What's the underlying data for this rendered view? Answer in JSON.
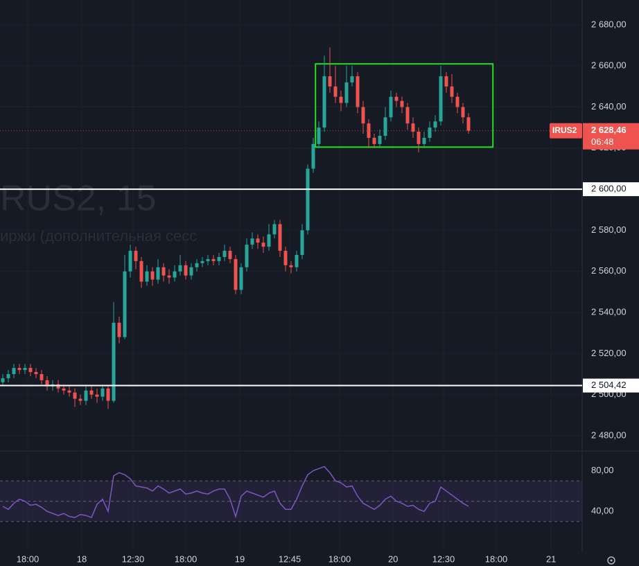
{
  "chart_data": {
    "type": "candlestick",
    "watermark": [
      "RUS2, 15",
      "иржи (дополнительная сесс"
    ],
    "open": [
      2506,
      2508,
      2510,
      2513,
      2512,
      2513,
      2511,
      2510,
      2507,
      2504,
      2505,
      2503,
      2502,
      2501,
      2498,
      2497,
      2502,
      2500,
      2499,
      2503,
      2497,
      2535,
      2528,
      2560,
      2570,
      2565,
      2555,
      2560,
      2556,
      2562,
      2558,
      2557,
      2560,
      2563,
      2558,
      2562,
      2564,
      2565,
      2566,
      2565,
      2567,
      2570,
      2566,
      2551,
      2562,
      2573,
      2576,
      2574,
      2572,
      2578,
      2583,
      2570,
      2563,
      2562,
      2568,
      2580,
      2610,
      2622,
      2630,
      2655,
      2650,
      2645,
      2642,
      2652,
      2655,
      2640,
      2632,
      2625,
      2622,
      2626,
      2635,
      2645,
      2643,
      2640,
      2632,
      2628,
      2622,
      2625,
      2630,
      2633,
      2655,
      2650,
      2645,
      2640,
      2635
    ],
    "high": [
      2510,
      2512,
      2515,
      2515,
      2515,
      2515,
      2513,
      2512,
      2509,
      2507,
      2507,
      2505,
      2504,
      2503,
      2500,
      2505,
      2504,
      2503,
      2505,
      2504,
      2545,
      2538,
      2568,
      2573,
      2572,
      2567,
      2563,
      2562,
      2566,
      2564,
      2561,
      2563,
      2568,
      2565,
      2564,
      2566,
      2567,
      2568,
      2568,
      2569,
      2573,
      2572,
      2568,
      2564,
      2576,
      2579,
      2578,
      2577,
      2583,
      2585,
      2585,
      2572,
      2565,
      2570,
      2583,
      2612,
      2625,
      2633,
      2665,
      2669,
      2660,
      2648,
      2660,
      2660,
      2657,
      2643,
      2634,
      2627,
      2629,
      2640,
      2648,
      2647,
      2645,
      2642,
      2635,
      2630,
      2628,
      2633,
      2636,
      2660,
      2657,
      2656,
      2647,
      2642,
      2637
    ],
    "low": [
      2504,
      2506,
      2508,
      2510,
      2510,
      2509,
      2508,
      2505,
      2502,
      2502,
      2501,
      2500,
      2499,
      2494,
      2495,
      2495,
      2498,
      2496,
      2497,
      2493,
      2496,
      2525,
      2527,
      2557,
      2561,
      2552,
      2553,
      2553,
      2554,
      2555,
      2554,
      2555,
      2558,
      2556,
      2556,
      2560,
      2562,
      2563,
      2563,
      2563,
      2565,
      2564,
      2549,
      2549,
      2560,
      2571,
      2571,
      2569,
      2570,
      2576,
      2567,
      2560,
      2559,
      2560,
      2566,
      2578,
      2608,
      2620,
      2628,
      2647,
      2642,
      2638,
      2640,
      2650,
      2637,
      2627,
      2620,
      2620,
      2620,
      2624,
      2633,
      2640,
      2637,
      2629,
      2625,
      2618,
      2620,
      2623,
      2628,
      2631,
      2647,
      2642,
      2637,
      2632,
      2627
    ],
    "close": [
      2508,
      2510,
      2513,
      2512,
      2513,
      2511,
      2510,
      2507,
      2504,
      2505,
      2503,
      2502,
      2501,
      2498,
      2497,
      2502,
      2500,
      2499,
      2503,
      2497,
      2535,
      2528,
      2560,
      2570,
      2565,
      2555,
      2560,
      2556,
      2562,
      2558,
      2557,
      2560,
      2563,
      2558,
      2562,
      2564,
      2565,
      2566,
      2565,
      2567,
      2570,
      2566,
      2551,
      2562,
      2573,
      2576,
      2574,
      2572,
      2578,
      2583,
      2570,
      2563,
      2562,
      2568,
      2580,
      2610,
      2622,
      2630,
      2655,
      2650,
      2645,
      2642,
      2652,
      2655,
      2640,
      2632,
      2625,
      2622,
      2626,
      2635,
      2645,
      2643,
      2640,
      2632,
      2628,
      2622,
      2625,
      2630,
      2633,
      2655,
      2650,
      2645,
      2640,
      2635,
      2628.46
    ],
    "up_color": "#26a69a",
    "down_color": "#ef5350",
    "xlim": [
      0,
      105
    ],
    "xticks": [
      {
        "value": 5,
        "label": "18:00"
      },
      {
        "value": 14.75,
        "label": "18"
      },
      {
        "value": 24,
        "label": "12:30"
      },
      {
        "value": 33.5,
        "label": "18:00"
      },
      {
        "value": 43.25,
        "label": "19"
      },
      {
        "value": 52.25,
        "label": "12:45"
      },
      {
        "value": 61.25,
        "label": "18:00"
      },
      {
        "value": 70.9,
        "label": "20"
      },
      {
        "value": 80,
        "label": "12:30"
      },
      {
        "value": 89.5,
        "label": "18:00"
      },
      {
        "value": 99.4,
        "label": "21"
      }
    ],
    "ylim": [
      2472.9,
      2692.1
    ],
    "yticks": [
      {
        "value": 2480,
        "label": "2 480,00"
      },
      {
        "value": 2500,
        "label": "2 500,00"
      },
      {
        "value": 2520,
        "label": "2 520,00"
      },
      {
        "value": 2540,
        "label": "2 540,00"
      },
      {
        "value": 2560,
        "label": "2 560,00"
      },
      {
        "value": 2580,
        "label": "2 580,00"
      },
      {
        "value": 2600,
        "label": "2 600,00"
      },
      {
        "value": 2620,
        "label": "2 620,00"
      },
      {
        "value": 2640,
        "label": "2 640,00"
      },
      {
        "value": 2660,
        "label": "2 660,00"
      },
      {
        "value": 2680,
        "label": "2 680,00"
      }
    ],
    "levels": [
      {
        "value": 2600,
        "label": "2 600,00"
      },
      {
        "value": 2504.42,
        "label": "2 504,42"
      }
    ],
    "last": {
      "symbol": "IRUS2",
      "value": 2628.46,
      "label": "2 628,46",
      "countdown": "06:48"
    },
    "box": {
      "x": [
        56.9,
        88.9
      ],
      "y": [
        2620.5,
        2661
      ],
      "color": "#22e022"
    },
    "indicator": {
      "type": "line",
      "color": "#7e57c2",
      "ylim": [
        0,
        100
      ],
      "yticks": [
        {
          "value": 40,
          "label": "40,00"
        },
        {
          "value": 80,
          "label": "80,00"
        }
      ],
      "levels": [
        30,
        50,
        70
      ],
      "values": [
        45,
        42,
        48,
        52,
        50,
        46,
        47,
        44,
        40,
        38,
        36,
        38,
        35,
        34,
        37,
        36,
        34,
        47,
        52,
        40,
        75,
        78,
        76,
        72,
        65,
        64,
        63,
        60,
        65,
        62,
        58,
        60,
        62,
        57,
        58,
        60,
        58,
        57,
        60,
        62,
        62,
        52,
        35,
        55,
        60,
        58,
        56,
        54,
        58,
        60,
        48,
        42,
        42,
        52,
        65,
        76,
        80,
        82,
        84,
        78,
        70,
        68,
        64,
        65,
        55,
        48,
        45,
        42,
        46,
        52,
        55,
        50,
        48,
        45,
        46,
        42,
        40,
        48,
        50,
        64,
        60,
        56,
        52,
        48,
        45
      ]
    }
  }
}
